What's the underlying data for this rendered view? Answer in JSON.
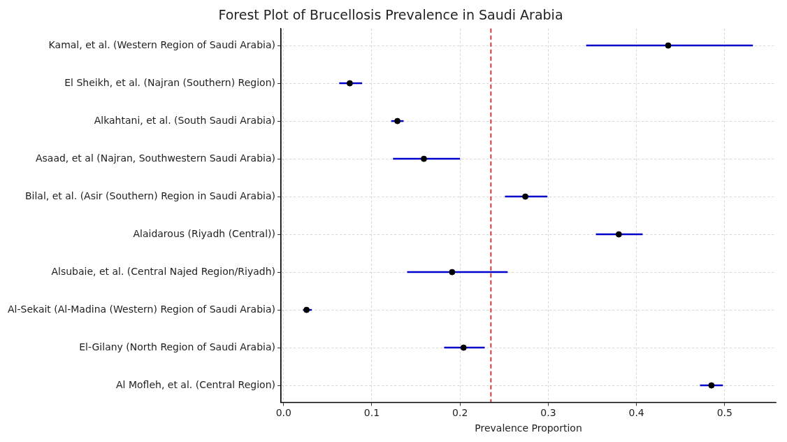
{
  "chart_data": {
    "type": "scatter",
    "orientation": "horizontal",
    "title": "Forest Plot of Brucellosis Prevalence in Saudi Arabia",
    "xlabel": "Prevalence Proportion",
    "categories": [
      "Kamal, et al. (Western Region of Saudi Arabia)",
      "El Sheikh, et al. (Najran (Southern) Region)",
      "Alkahtani, et al. (South Saudi Arabia)",
      "Asaad, et al (Najran, Southwestern Saudi Arabia)",
      "Bilal, et al. (Asir (Southern) Region in Saudi Arabia)",
      "Alaidarous (Riyadh (Central))",
      "Alsubaie, et al. (Central Najed Region/Riyadh)",
      "Al-Sekait (Al-Madina (Western) Region of Saudi Arabia)",
      "El-Gilany (North Region of Saudi Arabia)",
      "Al Mofleh, et al. (Central Region)"
    ],
    "series": [
      {
        "color": "#000000",
        "values": [
          0.436,
          0.075,
          0.129,
          0.159,
          0.274,
          0.38,
          0.191,
          0.026,
          0.204,
          0.485
        ],
        "errors": [
          [
            0.343,
            0.532
          ],
          [
            0.063,
            0.089
          ],
          [
            0.122,
            0.136
          ],
          [
            0.124,
            0.2
          ],
          [
            0.251,
            0.299
          ],
          [
            0.354,
            0.407
          ],
          [
            0.14,
            0.254
          ],
          [
            0.022,
            0.032
          ],
          [
            0.182,
            0.228
          ],
          [
            0.472,
            0.498
          ]
        ]
      }
    ],
    "xlim": [
      -0.003,
      0.558
    ],
    "xticks": [
      {
        "value": 0,
        "label": "0.0"
      },
      0.1,
      0.2,
      0.3,
      0.4,
      0.5
    ],
    "ref_lines": [
      {
        "axis": "x",
        "value": 0.235,
        "color": "#d62728",
        "line_style": "dashed"
      }
    ],
    "grid": true,
    "marker": "circle",
    "legend": false
  }
}
